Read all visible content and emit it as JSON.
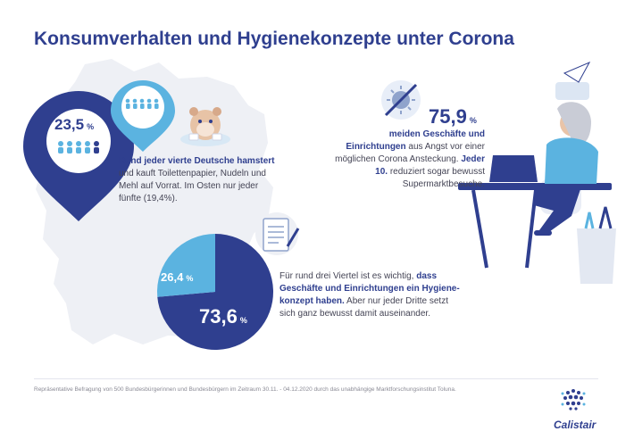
{
  "title": "Konsumverhalten und Hygienekonzepte unter Corona",
  "stat_hamster": {
    "value": "23,5",
    "unit": "%",
    "text_bold": "Rund jeder vierte Deutsche hamstert",
    "text_rest": "und kauft Toilettenpapier, Nudeln und Mehl auf Vorrat. Im Osten nur jeder fünfte (19,4%)."
  },
  "stat_avoid": {
    "value": "75,9",
    "unit": "%",
    "text_bold": "meiden Geschäfte und Einrichtungen",
    "text_mid": "aus Angst vor einer möglichen Corona Ansteckung.",
    "text_bold2": "Jeder 10.",
    "text_rest": "reduziert sogar bewusst Supermarktbesuche."
  },
  "stat_hygiene": {
    "pie_small_value": "26,4",
    "pie_large_value": "73,6",
    "unit": "%",
    "pie_fractions": [
      0.736,
      0.264
    ],
    "text_intro": "Für rund drei Viertel ist es wichtig,",
    "text_bold": "dass Geschäfte und Einrichtungen ein Hygiene-konzept haben.",
    "text_rest": "Aber nur jeder Dritte setzt sich ganz bewusst damit auseinander."
  },
  "footer": "Repräsentative Befragung von 500 Bundesbürgerinnen und Bundesbürgern im Zeitraum 30.11. - 04.12.2020 durch das unabhängige Marktforschungsinstitut Toluna.",
  "logo": "Calistair",
  "colors": {
    "dark_blue": "#2f3f8f",
    "light_blue": "#5bb3e0",
    "map_grey": "#eef0f5"
  }
}
